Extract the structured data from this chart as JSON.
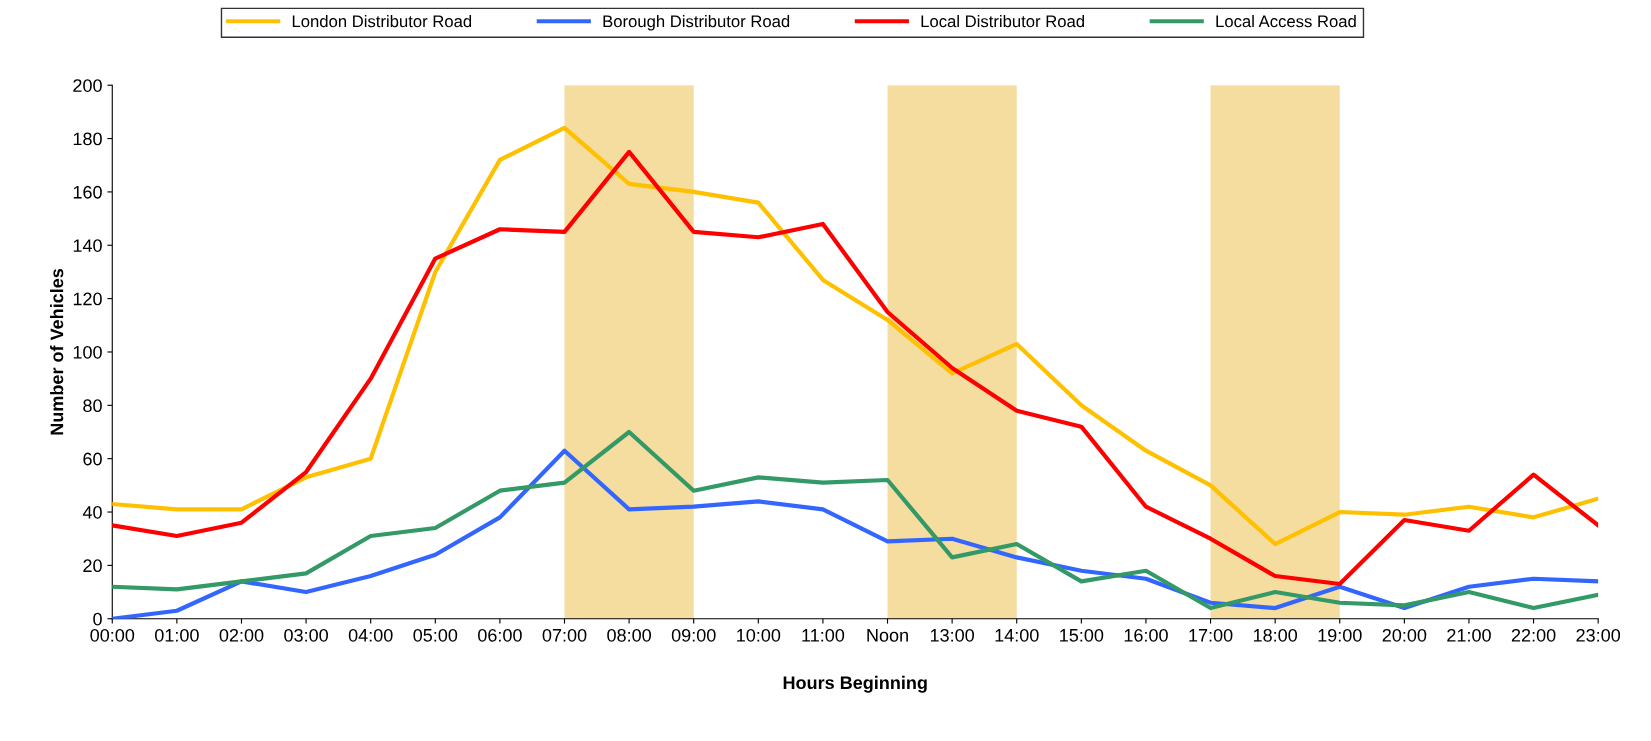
{
  "chart_data": {
    "type": "line",
    "xlabel": "Hours Beginning",
    "ylabel": "Number of Vehicles",
    "categories": [
      "00:00",
      "01:00",
      "02:00",
      "03:00",
      "04:00",
      "05:00",
      "06:00",
      "07:00",
      "08:00",
      "09:00",
      "10:00",
      "11:00",
      "Noon",
      "13:00",
      "14:00",
      "15:00",
      "16:00",
      "17:00",
      "18:00",
      "19:00",
      "20:00",
      "21:00",
      "22:00",
      "23:00"
    ],
    "series": [
      {
        "name": "London Distributor Road",
        "color": "#ffc000",
        "values": [
          43,
          41,
          41,
          53,
          60,
          130,
          172,
          184,
          163,
          160,
          156,
          127,
          112,
          92,
          103,
          80,
          63,
          50,
          28,
          40,
          39,
          42,
          38,
          45
        ]
      },
      {
        "name": "Borough Distributor Road",
        "color": "#3366ff",
        "values": [
          0,
          3,
          14,
          10,
          16,
          24,
          38,
          63,
          41,
          42,
          44,
          41,
          29,
          30,
          23,
          18,
          15,
          6,
          4,
          12,
          4,
          12,
          15,
          14
        ]
      },
      {
        "name": "Local Distributor Road",
        "color": "#ff0000",
        "values": [
          35,
          31,
          36,
          55,
          90,
          135,
          146,
          145,
          175,
          145,
          143,
          148,
          115,
          94,
          78,
          72,
          42,
          30,
          16,
          13,
          37,
          33,
          54,
          35
        ]
      },
      {
        "name": "Local Access Road",
        "color": "#339966",
        "values": [
          12,
          11,
          14,
          17,
          31,
          34,
          48,
          51,
          70,
          48,
          53,
          51,
          52,
          23,
          28,
          14,
          18,
          4,
          10,
          6,
          5,
          10,
          4,
          9
        ]
      }
    ],
    "ylim": [
      0,
      200
    ],
    "yticks": [
      0,
      20,
      40,
      60,
      80,
      100,
      120,
      140,
      160,
      180,
      200
    ],
    "bands": [
      {
        "axis": "x",
        "from": "07:00",
        "to": "09:00",
        "color": "#f5dc9f"
      },
      {
        "axis": "x",
        "from": "Noon",
        "to": "14:00",
        "color": "#f5dc9f"
      },
      {
        "axis": "x",
        "from": "17:00",
        "to": "19:00",
        "color": "#f5dc9f"
      }
    ],
    "legend": "top",
    "grid": false,
    "marker": "none",
    "line_style": "solid"
  }
}
